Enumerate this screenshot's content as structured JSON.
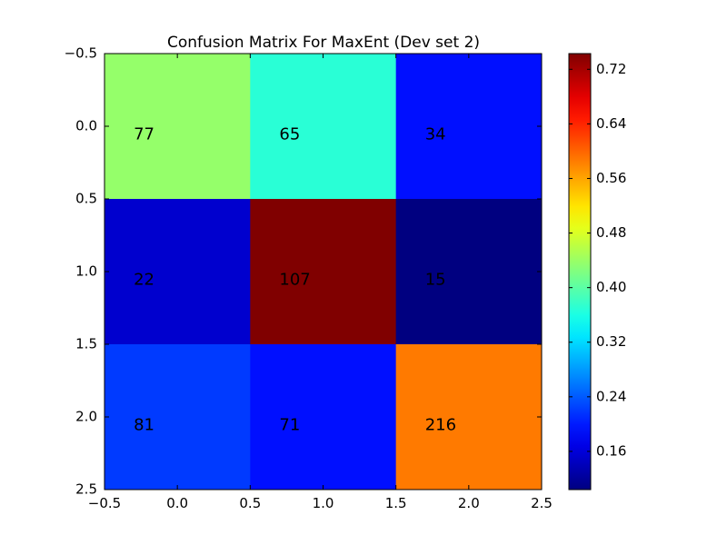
{
  "chart_data": {
    "type": "heatmap",
    "title": "Confusion Matrix For MaxEnt (Dev set 2)",
    "counts": [
      [
        77,
        65,
        34
      ],
      [
        22,
        107,
        15
      ],
      [
        81,
        71,
        216
      ]
    ],
    "normalized": [
      [
        0.437,
        0.369,
        0.193
      ],
      [
        0.153,
        0.743,
        0.104
      ],
      [
        0.22,
        0.193,
        0.587
      ]
    ],
    "xlim": [
      -0.5,
      2.5
    ],
    "ylim": [
      2.5,
      -0.5
    ],
    "x_ticks": [
      "−0.5",
      "0.0",
      "0.5",
      "1.0",
      "1.5",
      "2.0",
      "2.5"
    ],
    "y_ticks": [
      "−0.5",
      "0.0",
      "0.5",
      "1.0",
      "1.5",
      "2.0",
      "2.5"
    ],
    "colorbar": {
      "colormap": "jet",
      "range": [
        0.104,
        0.743
      ],
      "ticks": [
        "0.16",
        "0.24",
        "0.32",
        "0.40",
        "0.48",
        "0.56",
        "0.64",
        "0.72"
      ]
    }
  }
}
